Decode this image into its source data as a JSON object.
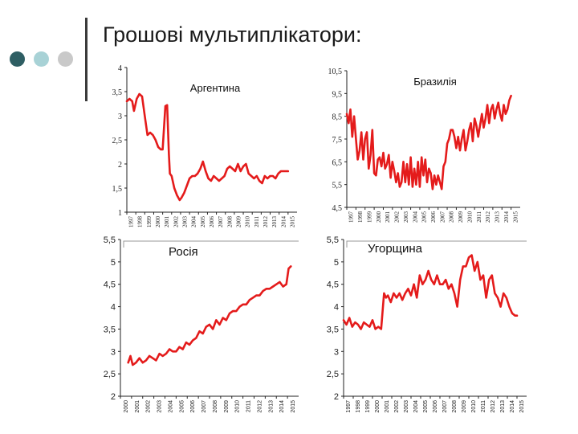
{
  "slide": {
    "title": "Грошові мультиплікатори:",
    "dot_colors": [
      "#2e5e63",
      "#a8d2d6",
      "#c9c9c9"
    ],
    "line_color": "#e41b1b"
  },
  "chart_data": [
    {
      "type": "line",
      "title": "Аргентина",
      "ylim": [
        1,
        4
      ],
      "yticks": [
        "1",
        "1,5",
        "2",
        "2,5",
        "3",
        "3,5",
        "4"
      ],
      "ytick_values": [
        1,
        1.5,
        2,
        2.5,
        3,
        3.5,
        4
      ],
      "categories": [
        "1997",
        "1998",
        "1999",
        "2000",
        "2001",
        "2002",
        "2003",
        "2004",
        "2005",
        "2006",
        "2007",
        "2008",
        "2009",
        "2010",
        "2011",
        "2012",
        "2013",
        "2014",
        "2015"
      ],
      "x": [
        1997.0,
        1997.3,
        1997.6,
        1997.8,
        1998.1,
        1998.4,
        1998.7,
        1999.0,
        1999.3,
        1999.6,
        1999.9,
        2000.2,
        2000.5,
        2000.8,
        2001.0,
        2001.3,
        2001.5,
        2001.7,
        2001.8,
        2002.0,
        2002.3,
        2002.6,
        2002.9,
        2003.1,
        2003.4,
        2003.7,
        2004.0,
        2004.3,
        2004.6,
        2004.9,
        2005.2,
        2005.5,
        2005.8,
        2006.1,
        2006.4,
        2006.7,
        2007.0,
        2007.3,
        2007.6,
        2007.9,
        2008.2,
        2008.5,
        2008.8,
        2009.1,
        2009.4,
        2009.7,
        2010.0,
        2010.3,
        2010.6,
        2010.9,
        2011.2,
        2011.5,
        2011.8,
        2012.1,
        2012.4,
        2012.7,
        2013.0,
        2013.3,
        2013.6,
        2013.9,
        2014.2,
        2014.5,
        2014.8,
        2015.0
      ],
      "series": [
        {
          "values": [
            3.3,
            3.35,
            3.3,
            3.1,
            3.35,
            3.45,
            3.4,
            3.0,
            2.6,
            2.65,
            2.6,
            2.5,
            2.35,
            2.3,
            2.3,
            3.2,
            3.22,
            2.2,
            1.8,
            1.75,
            1.5,
            1.35,
            1.25,
            1.3,
            1.4,
            1.55,
            1.7,
            1.75,
            1.75,
            1.8,
            1.9,
            2.05,
            1.85,
            1.7,
            1.65,
            1.75,
            1.7,
            1.65,
            1.7,
            1.75,
            1.9,
            1.95,
            1.9,
            1.85,
            2.0,
            1.85,
            1.95,
            2.0,
            1.8,
            1.75,
            1.7,
            1.75,
            1.65,
            1.6,
            1.75,
            1.7,
            1.75,
            1.75,
            1.7,
            1.8,
            1.85,
            1.85,
            1.85,
            1.85
          ]
        }
      ]
    },
    {
      "type": "line",
      "title": "Бразилія",
      "ylim": [
        4.5,
        10.5
      ],
      "yticks": [
        "4,5",
        "5,5",
        "6,5",
        "7,5",
        "8,5",
        "9,5",
        "10,5"
      ],
      "ytick_values": [
        4.5,
        5.5,
        6.5,
        7.5,
        8.5,
        9.5,
        10.5
      ],
      "categories": [
        "1997",
        "1998",
        "1999",
        "2000",
        "2001",
        "2002",
        "2003",
        "2004",
        "2005",
        "2006",
        "2007",
        "2008",
        "2009",
        "2010",
        "2011",
        "2012",
        "2013",
        "2014",
        "2015"
      ],
      "x": [
        1997.0,
        1997.2,
        1997.4,
        1997.6,
        1997.8,
        1998.0,
        1998.2,
        1998.4,
        1998.6,
        1998.8,
        1999.0,
        1999.2,
        1999.4,
        1999.6,
        1999.8,
        2000.0,
        2000.2,
        2000.4,
        2000.6,
        2000.8,
        2001.0,
        2001.2,
        2001.4,
        2001.6,
        2001.8,
        2002.0,
        2002.2,
        2002.4,
        2002.6,
        2002.8,
        2003.0,
        2003.2,
        2003.4,
        2003.6,
        2003.8,
        2004.0,
        2004.2,
        2004.4,
        2004.6,
        2004.8,
        2005.0,
        2005.2,
        2005.4,
        2005.6,
        2005.8,
        2006.0,
        2006.2,
        2006.4,
        2006.6,
        2006.8,
        2007.0,
        2007.2,
        2007.4,
        2007.6,
        2007.8,
        2008.0,
        2008.2,
        2008.4,
        2008.6,
        2008.8,
        2009.0,
        2009.2,
        2009.4,
        2009.6,
        2009.8,
        2010.0,
        2010.2,
        2010.4,
        2010.6,
        2010.8,
        2011.0,
        2011.2,
        2011.4,
        2011.6,
        2011.8,
        2012.0,
        2012.2,
        2012.4,
        2012.6,
        2012.8,
        2013.0,
        2013.2,
        2013.4,
        2013.6,
        2013.8,
        2014.0,
        2014.2,
        2014.4,
        2014.6,
        2014.8,
        2015.0
      ],
      "series": [
        {
          "values": [
            8.6,
            8.2,
            8.8,
            7.6,
            8.5,
            7.5,
            6.6,
            7.0,
            7.8,
            6.6,
            7.5,
            7.8,
            6.2,
            6.8,
            7.9,
            6.0,
            5.9,
            6.6,
            6.7,
            6.3,
            6.9,
            6.2,
            6.4,
            6.8,
            5.8,
            6.5,
            6.1,
            5.6,
            6.0,
            5.4,
            5.6,
            6.5,
            5.6,
            6.4,
            5.5,
            6.7,
            5.4,
            6.2,
            5.5,
            6.5,
            5.4,
            6.7,
            5.9,
            6.6,
            5.6,
            6.2,
            6.0,
            5.3,
            5.9,
            5.5,
            5.9,
            5.6,
            5.3,
            6.3,
            6.5,
            7.3,
            7.5,
            7.9,
            7.9,
            7.6,
            7.1,
            7.6,
            7.0,
            7.5,
            7.9,
            7.0,
            7.4,
            7.9,
            8.2,
            7.4,
            8.4,
            8.1,
            7.6,
            8.1,
            8.6,
            8.0,
            8.4,
            9.0,
            8.2,
            8.8,
            9.0,
            8.4,
            8.8,
            9.1,
            8.6,
            8.3,
            9.0,
            8.6,
            8.8,
            9.2,
            9.4
          ]
        }
      ]
    },
    {
      "type": "line",
      "title": "Росія",
      "ylim": [
        2,
        5.5
      ],
      "yticks": [
        "2",
        "2,5",
        "3",
        "3,5",
        "4",
        "4,5",
        "5",
        "5,5"
      ],
      "ytick_values": [
        2,
        2.5,
        3,
        3.5,
        4,
        4.5,
        5,
        5.5
      ],
      "categories": [
        "2000",
        "2001",
        "2002",
        "2003",
        "2004",
        "2005",
        "2006",
        "2007",
        "2008",
        "2009",
        "2010",
        "2011",
        "2012",
        "2013",
        "2014",
        "2015"
      ],
      "x": [
        2000.7,
        2000.9,
        2001.1,
        2001.4,
        2001.7,
        2002.0,
        2002.3,
        2002.6,
        2002.9,
        2003.2,
        2003.5,
        2003.8,
        2004.1,
        2004.4,
        2004.7,
        2005.0,
        2005.3,
        2005.6,
        2005.9,
        2006.2,
        2006.5,
        2006.8,
        2007.1,
        2007.4,
        2007.7,
        2008.0,
        2008.3,
        2008.6,
        2008.9,
        2009.2,
        2009.5,
        2009.8,
        2010.1,
        2010.4,
        2010.7,
        2011.0,
        2011.3,
        2011.6,
        2011.9,
        2012.2,
        2012.5,
        2012.8,
        2013.1,
        2013.4,
        2013.7,
        2014.0,
        2014.3,
        2014.6,
        2014.9,
        2015.1,
        2015.3
      ],
      "series": [
        {
          "values": [
            2.75,
            2.9,
            2.7,
            2.75,
            2.85,
            2.75,
            2.8,
            2.9,
            2.85,
            2.8,
            2.95,
            2.9,
            2.95,
            3.05,
            3.0,
            3.0,
            3.1,
            3.05,
            3.2,
            3.15,
            3.25,
            3.3,
            3.45,
            3.4,
            3.55,
            3.6,
            3.5,
            3.7,
            3.6,
            3.75,
            3.7,
            3.85,
            3.9,
            3.9,
            4.0,
            4.05,
            4.05,
            4.15,
            4.2,
            4.25,
            4.25,
            4.35,
            4.4,
            4.4,
            4.45,
            4.5,
            4.55,
            4.45,
            4.5,
            4.85,
            4.9
          ]
        }
      ]
    },
    {
      "type": "line",
      "title": "Угорщина",
      "ylim": [
        2,
        5.5
      ],
      "yticks": [
        "2",
        "2,5",
        "3",
        "3,5",
        "4",
        "4,5",
        "5",
        "5,5"
      ],
      "ytick_values": [
        2,
        2.5,
        3,
        3.5,
        4,
        4.5,
        5,
        5.5
      ],
      "categories": [
        "1997",
        "1998",
        "1999",
        "2000",
        "2001",
        "2002",
        "2003",
        "2004",
        "2005",
        "2006",
        "2007",
        "2008",
        "2009",
        "2010",
        "2011",
        "2012",
        "2013",
        "2014",
        "2015"
      ],
      "x": [
        1997.0,
        1997.3,
        1997.6,
        1997.9,
        1998.2,
        1998.5,
        1998.8,
        1999.1,
        1999.4,
        1999.7,
        2000.0,
        2000.3,
        2000.6,
        2000.9,
        2001.2,
        2001.4,
        2001.6,
        2001.9,
        2002.2,
        2002.5,
        2002.8,
        2003.1,
        2003.4,
        2003.7,
        2004.0,
        2004.3,
        2004.6,
        2004.9,
        2005.2,
        2005.5,
        2005.8,
        2006.1,
        2006.4,
        2006.7,
        2007.0,
        2007.3,
        2007.6,
        2007.9,
        2008.2,
        2008.5,
        2008.8,
        2009.1,
        2009.4,
        2009.7,
        2010.0,
        2010.3,
        2010.6,
        2010.9,
        2011.2,
        2011.5,
        2011.8,
        2012.1,
        2012.4,
        2012.7,
        2013.0,
        2013.3,
        2013.6,
        2013.9,
        2014.2,
        2014.5,
        2014.8,
        2015.0
      ],
      "series": [
        {
          "values": [
            3.7,
            3.6,
            3.75,
            3.55,
            3.65,
            3.6,
            3.5,
            3.65,
            3.6,
            3.55,
            3.7,
            3.5,
            3.55,
            3.5,
            4.3,
            4.2,
            4.25,
            4.1,
            4.3,
            4.2,
            4.3,
            4.15,
            4.3,
            4.4,
            4.25,
            4.5,
            4.2,
            4.7,
            4.5,
            4.6,
            4.8,
            4.6,
            4.5,
            4.7,
            4.5,
            4.5,
            4.6,
            4.4,
            4.5,
            4.3,
            4.0,
            4.6,
            4.9,
            4.9,
            5.1,
            5.15,
            4.8,
            5.0,
            4.6,
            4.7,
            4.2,
            4.6,
            4.7,
            4.3,
            4.2,
            4.0,
            4.3,
            4.2,
            4.0,
            3.85,
            3.8,
            3.8
          ]
        }
      ]
    }
  ]
}
